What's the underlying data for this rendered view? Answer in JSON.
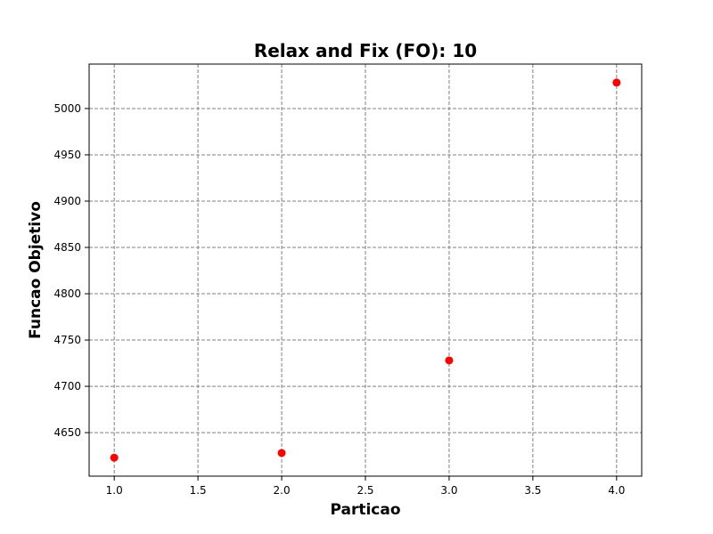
{
  "chart_data": {
    "type": "scatter",
    "title": "Relax and Fix (FO): 10",
    "xlabel": "Particao",
    "ylabel": "Funcao Objetivo",
    "xlim": [
      0.85,
      4.15
    ],
    "ylim": [
      4603,
      5048
    ],
    "xticks": [
      1.0,
      1.5,
      2.0,
      2.5,
      3.0,
      3.5,
      4.0
    ],
    "xtick_labels": [
      "1.0",
      "1.5",
      "2.0",
      "2.5",
      "3.0",
      "3.5",
      "4.0"
    ],
    "yticks": [
      4650,
      4700,
      4750,
      4800,
      4850,
      4900,
      4950,
      5000
    ],
    "ytick_labels": [
      "4650",
      "4700",
      "4750",
      "4800",
      "4850",
      "4900",
      "4950",
      "5000"
    ],
    "grid": true,
    "series": [
      {
        "color": "#ff0000",
        "points": [
          {
            "x": 1.0,
            "y": 4623
          },
          {
            "x": 2.0,
            "y": 4628
          },
          {
            "x": 3.0,
            "y": 4728
          },
          {
            "x": 4.0,
            "y": 5028
          }
        ]
      }
    ]
  }
}
